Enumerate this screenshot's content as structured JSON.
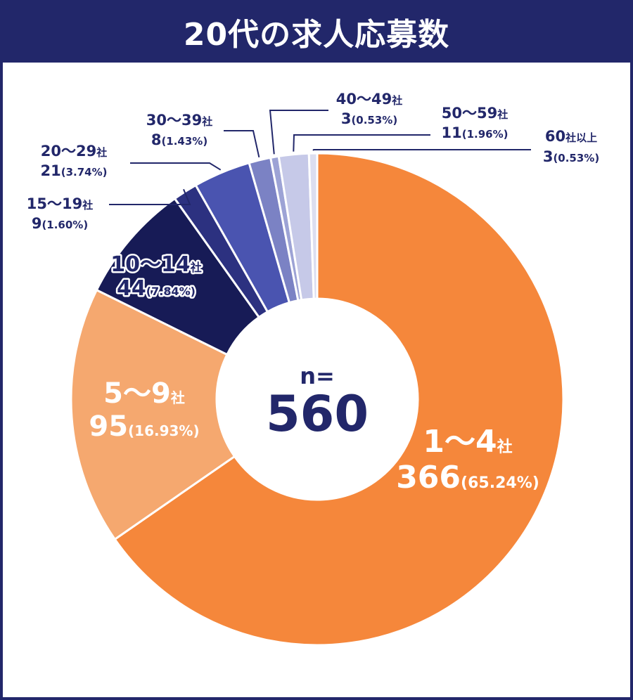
{
  "chart_data": {
    "type": "pie",
    "title": "20代の求人応募数",
    "center_label": "n=",
    "total": "560",
    "slices": [
      {
        "category": "1〜4",
        "unit": "社",
        "count": "366",
        "percent": "(65.24%)",
        "value": 366,
        "color": "#f5873b"
      },
      {
        "category": "5〜9",
        "unit": "社",
        "count": "95",
        "percent": "(16.93%)",
        "value": 95,
        "color": "#f5a86f"
      },
      {
        "category": "10〜14",
        "unit": "社",
        "count": "44",
        "percent": "(7.84%)",
        "value": 44,
        "color": "#171b56"
      },
      {
        "category": "15〜19",
        "unit": "社",
        "count": "9",
        "percent": "(1.60%)",
        "value": 9,
        "color": "#2c3180"
      },
      {
        "category": "20〜29",
        "unit": "社",
        "count": "21",
        "percent": "(3.74%)",
        "value": 21,
        "color": "#4a54b0"
      },
      {
        "category": "30〜39",
        "unit": "社",
        "count": "8",
        "percent": "(1.43%)",
        "value": 8,
        "color": "#7b82c4"
      },
      {
        "category": "40〜49",
        "unit": "社",
        "count": "3",
        "percent": "(0.53%)",
        "value": 3,
        "color": "#9da3d5"
      },
      {
        "category": "50〜59",
        "unit": "社",
        "count": "11",
        "percent": "(1.96%)",
        "value": 11,
        "color": "#c6c9e8"
      },
      {
        "category": "60",
        "unit": "社以上",
        "count": "3",
        "percent": "(0.53%)",
        "value": 3,
        "color": "#dcdef0"
      }
    ]
  }
}
